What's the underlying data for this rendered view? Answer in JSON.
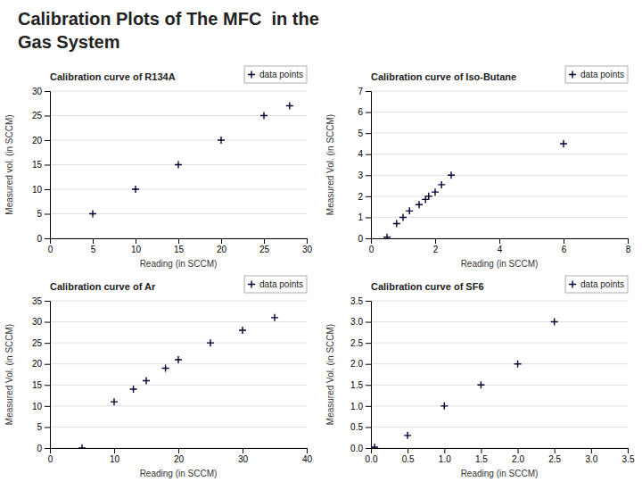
{
  "title": [
    "Calibration Plots of The MFC  in the",
    "Gas System"
  ],
  "chart_data": [
    {
      "type": "scatter",
      "title": "Calibration curve of R134A",
      "xlabel": "Reading (in SCCM)",
      "ylabel": "Measured vol. (in SCCM)",
      "x": [
        5,
        10,
        15,
        20,
        25,
        28
      ],
      "series": [
        {
          "name": "data points",
          "color": "#000033",
          "marker": "plus",
          "values": [
            5,
            10,
            15,
            20,
            25,
            27
          ]
        }
      ],
      "xlim": [
        0,
        30
      ],
      "ylim": [
        0,
        30
      ],
      "xticks": [
        0,
        5,
        10,
        15,
        20,
        25,
        30
      ],
      "yticks": [
        0,
        5,
        10,
        15,
        20,
        25,
        30
      ],
      "grid": "y",
      "legend": "upper right"
    },
    {
      "type": "scatter",
      "title": "Calibration curve of Iso-Butane",
      "xlabel": "Reading (in SCCM)",
      "ylabel": "Measured Vol. (in SCCM)",
      "x": [
        0.5,
        0.8,
        1.0,
        1.2,
        1.5,
        1.7,
        1.8,
        2.0,
        2.2,
        2.5,
        6.0
      ],
      "series": [
        {
          "name": "data points",
          "color": "#000033",
          "marker": "plus",
          "values": [
            0.05,
            0.7,
            1.0,
            1.3,
            1.6,
            1.85,
            2.0,
            2.2,
            2.55,
            3.0,
            4.5
          ]
        }
      ],
      "xlim": [
        0,
        8
      ],
      "ylim": [
        0,
        7
      ],
      "xticks": [
        0,
        2,
        4,
        6,
        8
      ],
      "yticks": [
        0,
        1,
        2,
        3,
        4,
        5,
        6,
        7
      ],
      "grid": "y",
      "legend": "upper right"
    },
    {
      "type": "scatter",
      "title": "Calibration curve of Ar",
      "xlabel": "Reading (in SCCM)",
      "ylabel": "Measured Vol. (in SCCM)",
      "x": [
        5,
        10,
        13,
        15,
        18,
        20,
        25,
        30,
        35
      ],
      "series": [
        {
          "name": "data points",
          "color": "#000033",
          "marker": "plus",
          "values": [
            0,
            11,
            14,
            16,
            19,
            21,
            25,
            28,
            31
          ]
        }
      ],
      "xlim": [
        0,
        40
      ],
      "ylim": [
        0,
        35
      ],
      "xticks": [
        0,
        10,
        20,
        30,
        40
      ],
      "yticks": [
        0,
        5,
        10,
        15,
        20,
        25,
        30,
        35
      ],
      "grid": "y",
      "legend": "upper right"
    },
    {
      "type": "scatter",
      "title": "Calibration curve of SF6",
      "xlabel": "Reading (in SCCM)",
      "ylabel": "Measured Vol. (in SCCM)",
      "x": [
        0.05,
        0.5,
        1.0,
        1.5,
        2.0,
        2.5
      ],
      "series": [
        {
          "name": "data points",
          "color": "#000033",
          "marker": "plus",
          "values": [
            0.02,
            0.3,
            1.0,
            1.5,
            2.0,
            3.0
          ]
        }
      ],
      "xlim": [
        0,
        3.5
      ],
      "ylim": [
        0,
        3.5
      ],
      "xticks": [
        {
          "value": 0,
          "label": "0.0"
        },
        0.5,
        {
          "value": 1.0,
          "label": "1.0"
        },
        1.5,
        {
          "value": 2.0,
          "label": "2.0"
        },
        2.5,
        {
          "value": 3.0,
          "label": "3.0"
        },
        3.5
      ],
      "yticks": [
        {
          "value": 0,
          "label": "0.0"
        },
        0.5,
        {
          "value": 1.0,
          "label": "1.0"
        },
        1.5,
        {
          "value": 2.0,
          "label": "2.0"
        },
        2.5,
        {
          "value": 3.0,
          "label": "3.0"
        },
        3.5
      ],
      "grid": "y",
      "legend": "upper right"
    }
  ]
}
